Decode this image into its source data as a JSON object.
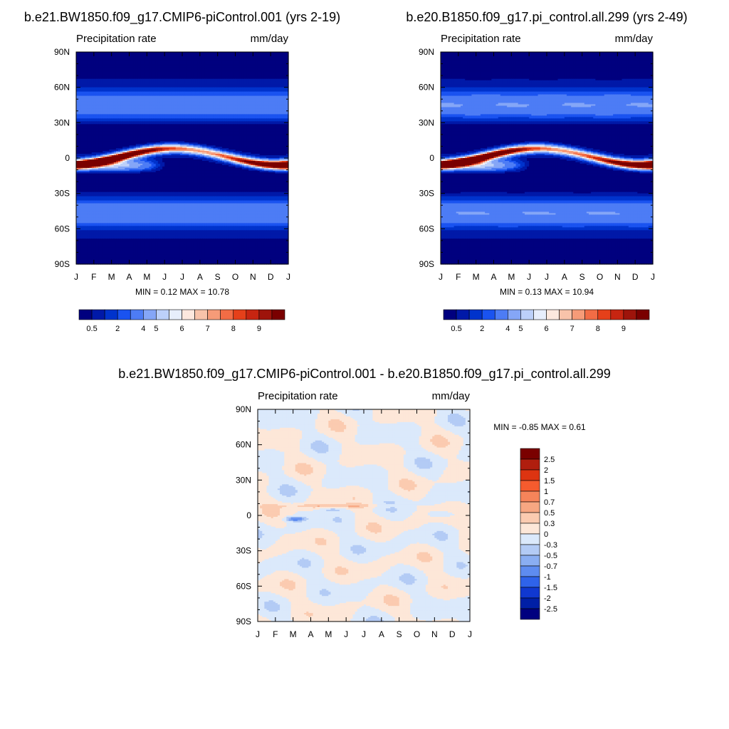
{
  "chart_data": [
    {
      "type": "heatmap",
      "title": "b.e21.BW1850.f09_g17.CMIP6-piControl.001 (yrs 2-19)",
      "left_label": "Precipitation rate",
      "right_label": "mm/day",
      "x_ticks": [
        "J",
        "F",
        "M",
        "A",
        "M",
        "J",
        "J",
        "A",
        "S",
        "O",
        "N",
        "D",
        "J"
      ],
      "y_ticks": [
        "90N",
        "60N",
        "30N",
        "0",
        "30S",
        "60S",
        "90S"
      ],
      "y_range": [
        -90,
        90
      ],
      "stats": "MIN =   0.12 MAX =  10.78",
      "min": 0.12,
      "max": 10.78,
      "colorbar_labels": [
        "0.5",
        "2",
        "4",
        "5",
        "6",
        "7",
        "8",
        "9"
      ]
    },
    {
      "type": "heatmap",
      "title": "b.e20.B1850.f09_g17.pi_control.all.299 (yrs 2-49)",
      "left_label": "Precipitation rate",
      "right_label": "mm/day",
      "x_ticks": [
        "J",
        "F",
        "M",
        "A",
        "M",
        "J",
        "J",
        "A",
        "S",
        "O",
        "N",
        "D",
        "J"
      ],
      "y_ticks": [
        "90N",
        "60N",
        "30N",
        "0",
        "30S",
        "60S",
        "90S"
      ],
      "y_range": [
        -90,
        90
      ],
      "stats": "MIN =   0.13 MAX =  10.94",
      "min": 0.13,
      "max": 10.94,
      "colorbar_labels": [
        "0.5",
        "2",
        "4",
        "5",
        "6",
        "7",
        "8",
        "9"
      ]
    },
    {
      "type": "heatmap",
      "title": "b.e21.BW1850.f09_g17.CMIP6-piControl.001 - b.e20.B1850.f09_g17.pi_control.all.299",
      "left_label": "Precipitation rate",
      "right_label": "mm/day",
      "x_ticks": [
        "J",
        "F",
        "M",
        "A",
        "M",
        "J",
        "J",
        "A",
        "S",
        "O",
        "N",
        "D",
        "J"
      ],
      "y_ticks": [
        "90N",
        "60N",
        "30N",
        "0",
        "30S",
        "60S",
        "90S"
      ],
      "y_range": [
        -90,
        90
      ],
      "stats": "MIN =  -0.85 MAX =   0.61",
      "min": -0.85,
      "max": 0.61,
      "colorbar_labels": [
        "2.5",
        "2",
        "1.5",
        "1",
        "0.7",
        "0.5",
        "0.3",
        "0",
        "-0.3",
        "-0.5",
        "-0.7",
        "-1",
        "-1.5",
        "-2",
        "-2.5"
      ]
    }
  ],
  "colors": {
    "abs_scale": [
      "#00007f",
      "#0019a8",
      "#0033cc",
      "#1a53f0",
      "#4d7cf5",
      "#85a6f7",
      "#bcd0fa",
      "#e7eefc",
      "#fde8de",
      "#f8c3aa",
      "#f69b78",
      "#f26c45",
      "#e5401a",
      "#c72511",
      "#9e140b",
      "#7a0000"
    ],
    "diff_scale": [
      "#7a0000",
      "#b01e0e",
      "#dd3411",
      "#f55b2e",
      "#f6845a",
      "#f7a782",
      "#fbcbb0",
      "#fde7d8",
      "#dbe9fb",
      "#b3cbf5",
      "#8aaef2",
      "#5e8cf0",
      "#2f63ea",
      "#1038d0",
      "#001fa6",
      "#00007f"
    ]
  }
}
